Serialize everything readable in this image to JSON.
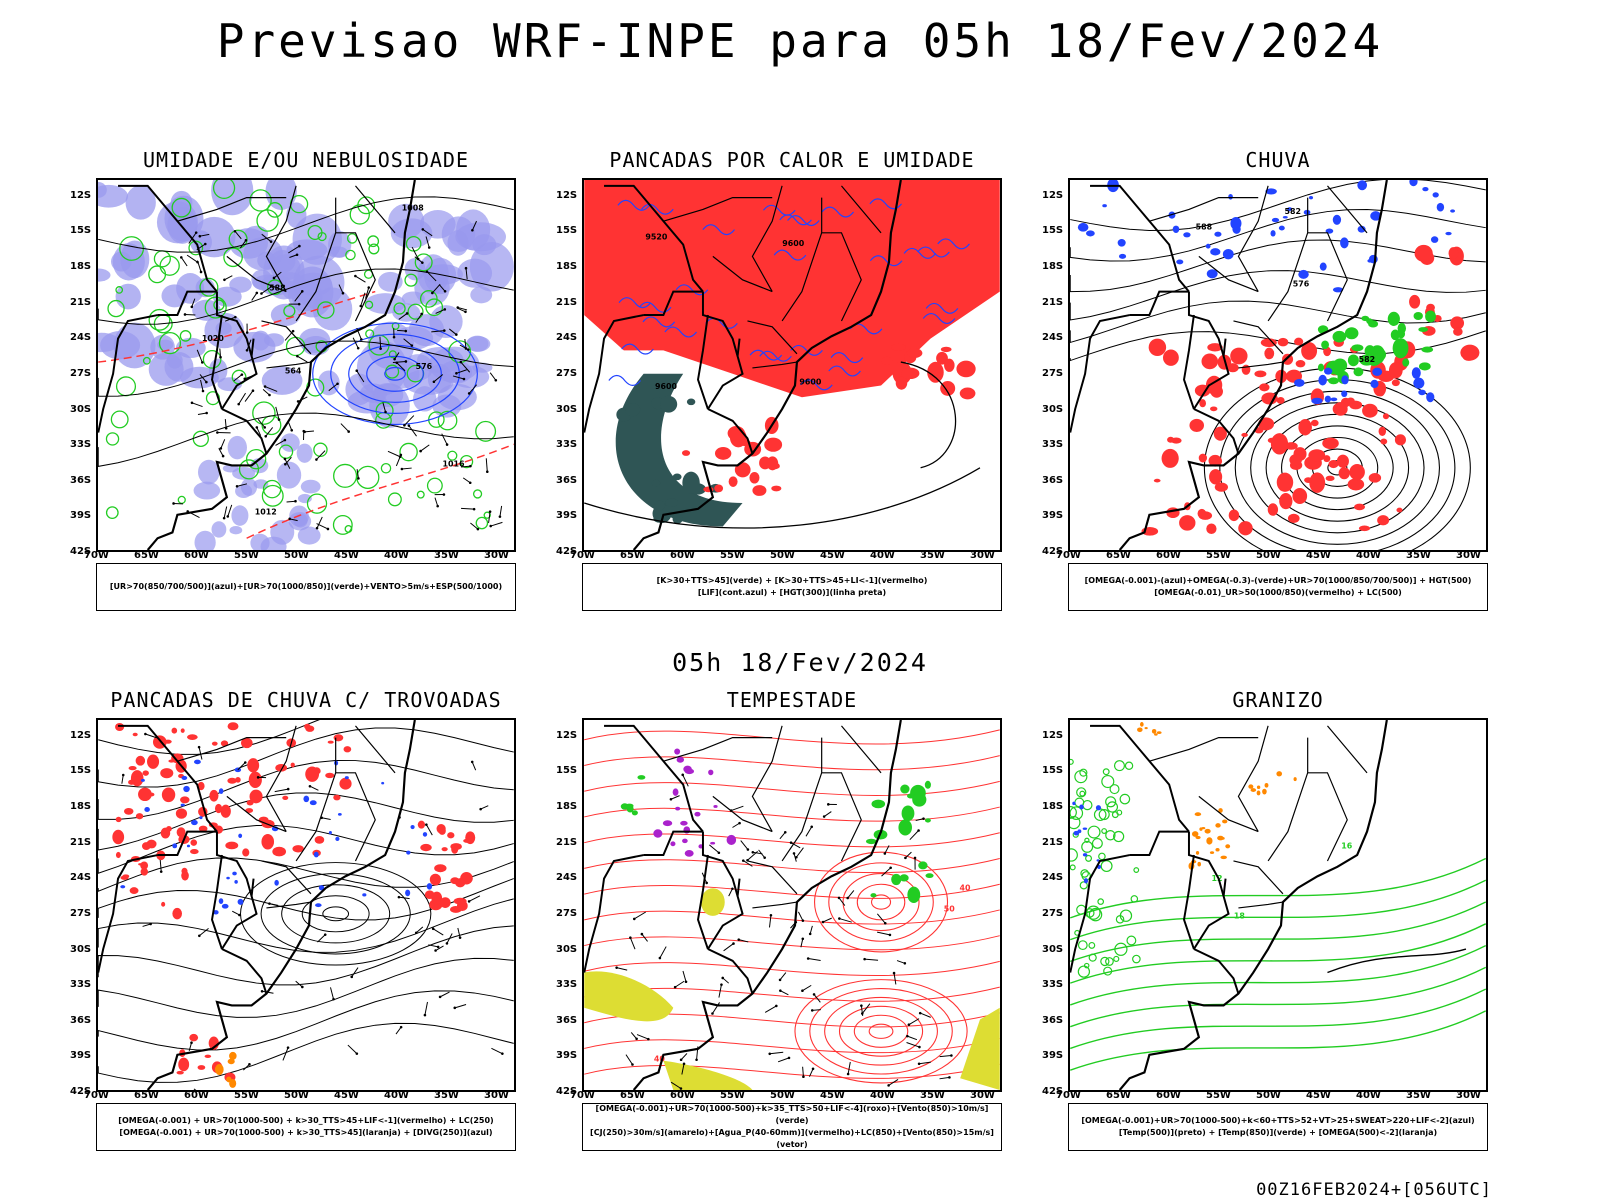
{
  "title": "Previsao WRF-INPE  para 05h 18/Fev/2024",
  "subtitle": "05h 18/Fev/2024",
  "footer": "00Z16FEB2024+[056UTC]",
  "lat_ticks": [
    "12S",
    "15S",
    "18S",
    "21S",
    "24S",
    "27S",
    "30S",
    "33S",
    "36S",
    "39S",
    "42S"
  ],
  "lon_ticks": [
    "70W",
    "65W",
    "60W",
    "55W",
    "50W",
    "45W",
    "40W",
    "35W",
    "30W"
  ],
  "panels": [
    {
      "title": "UMIDADE E/OU NEBULOSIDADE",
      "legend": [
        "[UR>70(850/700/500)](azul)+[UR>70(1000/850)](verde)+VENTO>5m/s+ESP(500/1000)"
      ],
      "labels": [
        "1012",
        "1008",
        "1016",
        "1020",
        "576",
        "564",
        "588"
      ]
    },
    {
      "title": "PANCADAS POR CALOR E UMIDADE",
      "legend": [
        "[K>30+TTS>45](verde) + [K>30+TTS>45+LI<-1](vermelho)",
        "[LIF](cont.azul) + [HGT(300)](linha preta)"
      ],
      "labels": [
        "9600",
        "9520",
        "9600",
        "9600"
      ]
    },
    {
      "title": "CHUVA",
      "legend": [
        "[OMEGA(-0.001)-(azul)+OMEGA(-0.3)-(verde)+UR>70(1000/850/700/500)] + HGT(500)",
        "[OMEGA(-0.01)_UR>50(1000/850)(vermelho) + LC(500)"
      ],
      "labels": [
        "576",
        "582",
        "588",
        "582"
      ]
    },
    {
      "title": "PANCADAS DE CHUVA C/ TROVOADAS",
      "legend": [
        "[OMEGA(-0.001) + UR>70(1000-500) + k>30_TTS>45+LIF<-1](vermelho) + LC(250)",
        "[OMEGA(-0.001) + UR>70(1000-500) + k>30_TTS>45](laranja) + [DIVG(250)](azul)"
      ],
      "labels": []
    },
    {
      "title": "TEMPESTADE",
      "legend": [
        "[OMEGA(-0.001)+UR>70(1000-500)+k>35_TTS>50+LIF<-4](roxo)+[Vento(850)>10m/s](verde)",
        "[CJ(250)>30m/s](amarelo)+[Agua_P(40-60mm)](vermelho)+LC(850)+[Vento(850)>15m/s](vetor)"
      ],
      "labels": [
        "40",
        "50",
        "40"
      ]
    },
    {
      "title": "GRANIZO",
      "legend": [
        "[OMEGA(-0.001)+UR>70(1000-500)+k<60+TTS>52+VT>25+SWEAT>220+LIF<-2](azul)",
        "[Temp(500)](preto) + [Temp(850)](verde) + [OMEGA(500)<-2](laranja)"
      ],
      "labels": [
        "18",
        "16",
        "12"
      ]
    }
  ],
  "colors": {
    "blue_fill": "#9999ee",
    "green_line": "#22cc22",
    "red": "#ff3333",
    "dark_teal": "#2f5555",
    "orange": "#ff8800",
    "yellow": "#dddd33",
    "purple": "#aa22cc",
    "blue": "#2244ff"
  }
}
